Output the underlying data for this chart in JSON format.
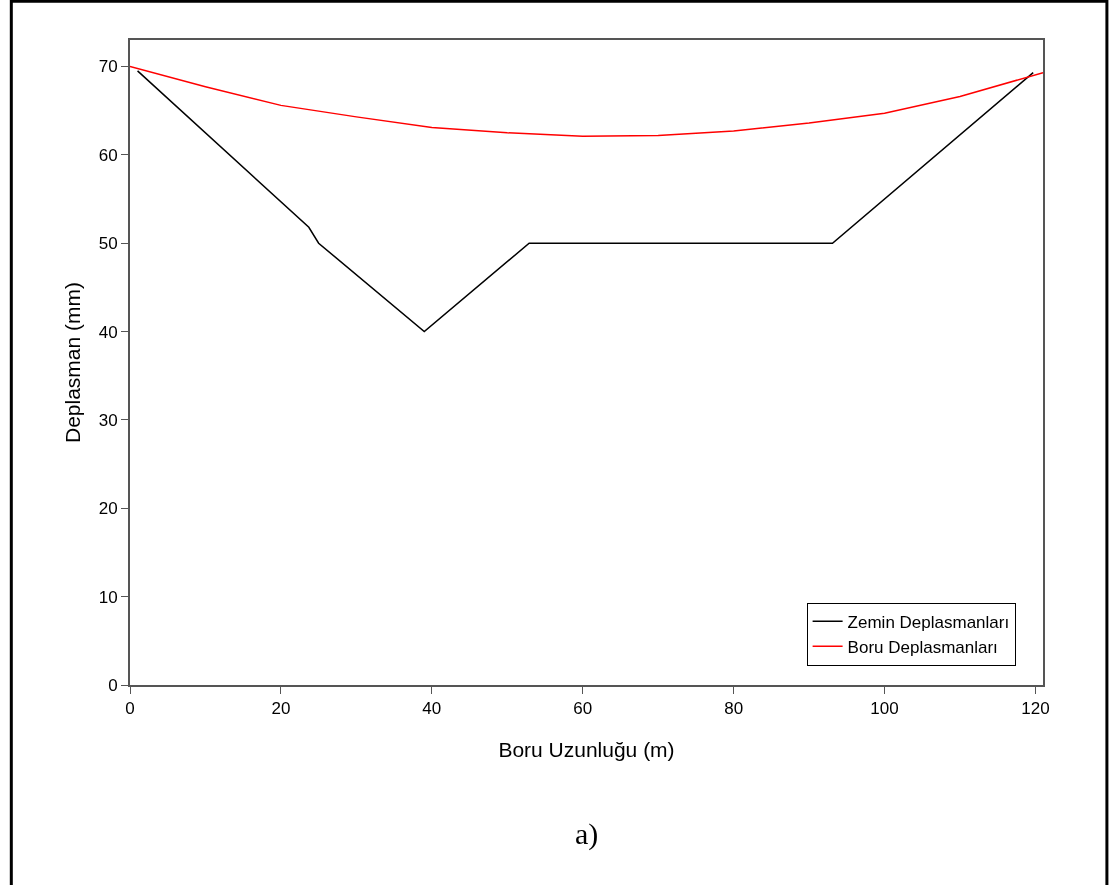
{
  "chart_data": {
    "type": "line",
    "xlabel": "Boru Uzunluğu (m)",
    "ylabel": "Deplasman (mm)",
    "annotations": [
      "a)"
    ],
    "xlim": [
      0,
      121
    ],
    "xticks": [
      0,
      20,
      40,
      60,
      80,
      100,
      120
    ],
    "ylim": [
      0,
      73
    ],
    "yticks": [
      0,
      10,
      20,
      30,
      40,
      50,
      60,
      70
    ],
    "legend": "bottom right",
    "line_style": "solid",
    "series": [
      {
        "name": "Zemin Deplasmanları",
        "color": "#000000",
        "x": [
          1,
          23.7,
          25,
          39,
          52.9,
          93.1,
          119.7
        ],
        "values": [
          69.5,
          51.8,
          50,
          40,
          50,
          50,
          69.3
        ]
      },
      {
        "name": "Boru Deplasmanları",
        "color": "#ff0000",
        "x": [
          0,
          10,
          20,
          30,
          40,
          50,
          60,
          70,
          80,
          90,
          100,
          110,
          121
        ],
        "values": [
          70,
          67.7,
          65.6,
          64.3,
          63.1,
          62.5,
          62.1,
          62.2,
          62.7,
          63.6,
          64.7,
          66.6,
          69.3
        ]
      }
    ]
  }
}
